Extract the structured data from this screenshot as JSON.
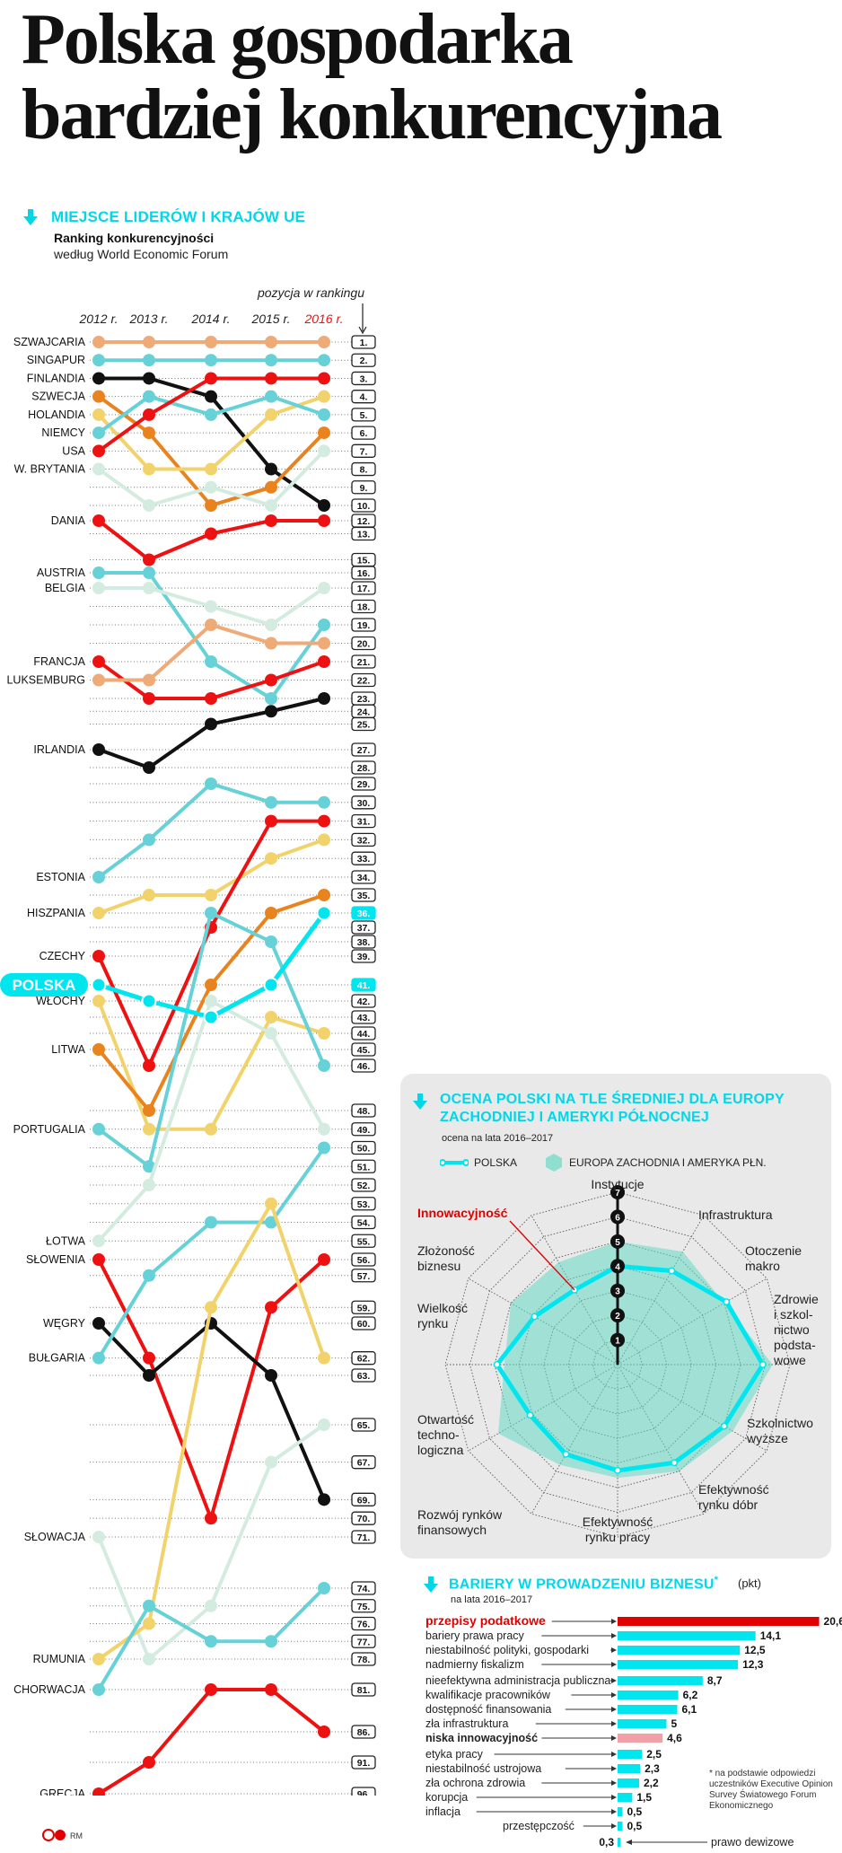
{
  "title_line1": "Polska gospodarka",
  "title_line2": "bardziej konkurencyjna",
  "section1": {
    "heading": "MIEJSCE LIDERÓW I KRAJÓW UE",
    "subtitle": "Ranking konkurencyjności",
    "source": "według World Economic Forum"
  },
  "colors": {
    "cyan": "#00e5ee",
    "red": "#ee1111",
    "black": "#111111",
    "orange": "#e8831e",
    "peach": "#eeaa77",
    "yellow": "#f2d36b",
    "teal": "#66d1d6",
    "pale": "#d4ecdf",
    "pink": "#f2a0a8"
  },
  "chart_data": [
    {
      "type": "line",
      "title": "Ranking konkurencyjności",
      "ylabel": "pozycja w rankingu",
      "x": [
        "2012 r.",
        "2013 r.",
        "2014 r.",
        "2015 r.",
        "2016 r."
      ],
      "ranks": [
        "1.",
        "2.",
        "3.",
        "4.",
        "5.",
        "6.",
        "7.",
        "8.",
        "9.",
        "10.",
        "12.",
        "13.",
        "15.",
        "16.",
        "17.",
        "18.",
        "19.",
        "20.",
        "21.",
        "22.",
        "23.",
        "24.",
        "25.",
        "27.",
        "28.",
        "29.",
        "30.",
        "31.",
        "32.",
        "33.",
        "34.",
        "35.",
        "36.",
        "37.",
        "38.",
        "39.",
        "41.",
        "42.",
        "43.",
        "44.",
        "45.",
        "46.",
        "48.",
        "49.",
        "50.",
        "51.",
        "52.",
        "53.",
        "54.",
        "55.",
        "56.",
        "57.",
        "59.",
        "60.",
        "62.",
        "63.",
        "65.",
        "67.",
        "69.",
        "70.",
        "71.",
        "74.",
        "75.",
        "76.",
        "77.",
        "78.",
        "81.",
        "86.",
        "91.",
        "96."
      ],
      "series": [
        {
          "name": "SZWAJCARIA",
          "color": "peach",
          "values": [
            1,
            1,
            1,
            1,
            1
          ]
        },
        {
          "name": "SINGAPUR",
          "color": "teal",
          "values": [
            2,
            2,
            2,
            2,
            2
          ]
        },
        {
          "name": "FINLANDIA",
          "color": "black",
          "values": [
            3,
            3,
            4,
            8,
            10
          ]
        },
        {
          "name": "SZWECJA",
          "color": "orange",
          "values": [
            4,
            6,
            10,
            9,
            6
          ]
        },
        {
          "name": "HOLANDIA",
          "color": "yellow",
          "values": [
            5,
            8,
            8,
            5,
            4
          ]
        },
        {
          "name": "NIEMCY",
          "color": "teal",
          "values": [
            6,
            4,
            5,
            4,
            5
          ]
        },
        {
          "name": "USA",
          "color": "red",
          "values": [
            7,
            5,
            3,
            3,
            3
          ]
        },
        {
          "name": "W. BRYTANIA",
          "color": "pale",
          "values": [
            8,
            10,
            9,
            10,
            7
          ]
        },
        {
          "name": "DANIA",
          "color": "red",
          "values": [
            12,
            15,
            13,
            12,
            12
          ]
        },
        {
          "name": "AUSTRIA",
          "color": "teal",
          "values": [
            16,
            16,
            21,
            23,
            19
          ]
        },
        {
          "name": "BELGIA",
          "color": "pale",
          "values": [
            17,
            17,
            18,
            19,
            17
          ]
        },
        {
          "name": "FRANCJA",
          "color": "red",
          "values": [
            21,
            23,
            23,
            22,
            21
          ]
        },
        {
          "name": "LUKSEMBURG",
          "color": "peach",
          "values": [
            22,
            22,
            19,
            20,
            20
          ]
        },
        {
          "name": "IRLANDIA",
          "color": "black",
          "values": [
            27,
            28,
            25,
            24,
            23
          ]
        },
        {
          "name": "ESTONIA",
          "color": "teal",
          "values": [
            34,
            32,
            29,
            30,
            30
          ]
        },
        {
          "name": "HISZPANIA",
          "color": "yellow",
          "values": [
            36,
            35,
            35,
            33,
            32
          ]
        },
        {
          "name": "CZECHY",
          "color": "red",
          "values": [
            39,
            46,
            37,
            31,
            31
          ]
        },
        {
          "name": "POLSKA",
          "color": "cyan",
          "values": [
            41,
            42,
            43,
            41,
            36
          ]
        },
        {
          "name": "WŁOCHY",
          "color": "yellow",
          "values": [
            42,
            49,
            49,
            43,
            44
          ]
        },
        {
          "name": "LITWA",
          "color": "orange",
          "values": [
            45,
            48,
            41,
            36,
            35
          ]
        },
        {
          "name": "PORTUGALIA",
          "color": "teal",
          "values": [
            49,
            51,
            36,
            38,
            46
          ]
        },
        {
          "name": "ŁOTWA",
          "color": "pale",
          "values": [
            55,
            52,
            42,
            44,
            49
          ]
        },
        {
          "name": "SŁOWENIA",
          "color": "red",
          "values": [
            56,
            62,
            70,
            59,
            56
          ]
        },
        {
          "name": "WĘGRY",
          "color": "black",
          "values": [
            60,
            63,
            60,
            63,
            69
          ]
        },
        {
          "name": "BUŁGARIA",
          "color": "teal",
          "values": [
            62,
            57,
            54,
            54,
            50
          ]
        },
        {
          "name": "SŁOWACJA",
          "color": "pale",
          "values": [
            71,
            78,
            75,
            67,
            65
          ]
        },
        {
          "name": "RUMUNIA",
          "color": "yellow",
          "values": [
            78,
            76,
            59,
            53,
            62
          ]
        },
        {
          "name": "CHORWACJA",
          "color": "teal",
          "values": [
            81,
            75,
            77,
            77,
            74
          ]
        },
        {
          "name": "GRECJA",
          "color": "red",
          "values": [
            96,
            91,
            81,
            81,
            86
          ]
        }
      ]
    },
    {
      "type": "radar",
      "title": "OCENA POLSKI NA TLE ŚREDNIEJ DLA EUROPY ZACHODNIEJ I AMERYKI PÓŁNOCNEJ",
      "subtitle": "ocena na lata 2016–2017",
      "scale": [
        1,
        2,
        3,
        4,
        5,
        6,
        7
      ],
      "axes": [
        "Instytucje",
        "Infrastruktura",
        "Otoczenie makro",
        "Zdrowie i szkolnictwo podstawowe",
        "Szkolnictwo wyższe",
        "Efektywność rynku dóbr",
        "Efektywność rynku pracy",
        "Rozwój rynków finansowych",
        "Otwartość technologiczna",
        "Wielkość rynku",
        "Złożoność biznesu",
        "Innowacyjność"
      ],
      "axis_display": [
        "Instytucje",
        "Infrastruktura",
        "Otoczenie\nmakro",
        "Zdrowie\ni szkol-\nnictwo\npodsta-\nwowe",
        "Szkolnictwo\nwyższe",
        "Efektywność\nrynku dóbr",
        "Efektywność\nrynku pracy",
        "Rozwój rynków\nfinansowych",
        "Otwartość\ntechno-\nlogiczna",
        "Wielkość\nrynku",
        "Złożoność\nbiznesu",
        "Innowacyjność"
      ],
      "series": [
        {
          "name": "POLSKA",
          "values": [
            4.0,
            4.4,
            5.1,
            5.9,
            5.0,
            4.6,
            4.3,
            4.2,
            4.1,
            4.9,
            3.9,
            3.5
          ]
        },
        {
          "name": "EUROPA ZACHODNIA I AMERYKA PŁN.",
          "values": [
            5.0,
            5.3,
            5.0,
            6.3,
            5.4,
            5.0,
            4.6,
            4.7,
            5.6,
            4.6,
            5.0,
            4.8
          ]
        }
      ]
    },
    {
      "type": "bar",
      "title": "BARIERY W PROWADZENIU BIZNESU",
      "title_mark": "*",
      "unit": "(pkt)",
      "subtitle": "na lata 2016–2017",
      "note": "* na podstawie odpowiedzi uczestników Executive Opinion Survey Światowego Forum Ekonomicznego",
      "categories": [
        "przepisy podatkowe",
        "bariery prawa pracy",
        "niestabilność polityki, gospodarki",
        "nadmierny fiskalizm",
        "nieefektywna administracja publiczna",
        "kwalifikacje pracowników",
        "dostępność finansowania",
        "zła infrastruktura",
        "niska innowacyjność",
        "etyka pracy",
        "niestabilność ustrojowa",
        "zła ochrona zdrowia",
        "korupcja",
        "inflacja",
        "przestępczość",
        "prawo dewizowe"
      ],
      "values": [
        20.6,
        14.1,
        12.5,
        12.3,
        8.7,
        6.2,
        6.1,
        5.0,
        4.6,
        2.5,
        2.3,
        2.2,
        1.5,
        0.5,
        0.5,
        0.3
      ],
      "value_labels": [
        "20,6",
        "14,1",
        "12,5",
        "12,3",
        "8,7",
        "6,2",
        "6,1",
        "5",
        "4,6",
        "2,5",
        "2,3",
        "2,2",
        "1,5",
        "0,5",
        "0,5",
        "0,3"
      ],
      "highlight": {
        "przepisy podatkowe": "red",
        "niska innowacyjność": "pink"
      }
    }
  ],
  "footer": {
    "credit": "RM"
  }
}
